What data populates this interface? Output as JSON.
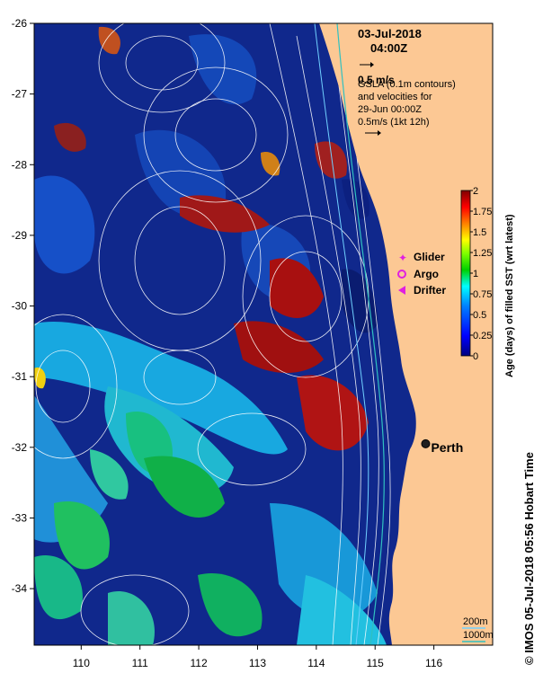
{
  "map": {
    "date": "03-Jul-2018",
    "time": "04:00Z",
    "vector_scale_label": "0.5 m/s",
    "contour_note_lines": [
      "GSLA (0.1m contours)",
      "and velocities for",
      "29-Jun 00:00Z",
      "0.5m/s (1kt 12h)"
    ],
    "lon_ticks": [
      "110",
      "111",
      "112",
      "113",
      "114",
      "115",
      "116"
    ],
    "lat_ticks": [
      "-26",
      "-27",
      "-28",
      "-29",
      "-30",
      "-31",
      "-32",
      "-33",
      "-34"
    ],
    "lon_range": [
      109.2,
      117.0
    ],
    "lat_range": [
      -34.8,
      -26.0
    ],
    "city": {
      "name": "Perth",
      "lon": 115.86,
      "lat": -31.95
    },
    "legend_items": [
      {
        "label": "Glider",
        "symbol": "star",
        "color": "#e020e0"
      },
      {
        "label": "Argo",
        "symbol": "circle",
        "color": "#e020e0"
      },
      {
        "label": "Drifter",
        "symbol": "triangle",
        "color": "#e020e0"
      }
    ],
    "isobath_labels": [
      "200m",
      "1000m"
    ],
    "colors": {
      "land": "#fcc894",
      "ocean_base": "#10288c",
      "isobath_200": "#70d0ff",
      "isobath_1000": "#30c0c0"
    },
    "credit": "© IMOS 05-Jul-2018 05:56 Hobart Time"
  },
  "colorbar": {
    "title": "Age (days) of filled SST (wrt latest)",
    "tick_labels": [
      "0",
      "0.25",
      "0.5",
      "0.75",
      "1",
      "1.25",
      "1.5",
      "1.75",
      "2"
    ],
    "range": [
      0,
      2
    ],
    "colors": [
      "#00007f",
      "#0000ff",
      "#0080ff",
      "#00ffff",
      "#00d000",
      "#80ff00",
      "#ffff00",
      "#ff8000",
      "#ff0000",
      "#800000"
    ]
  }
}
